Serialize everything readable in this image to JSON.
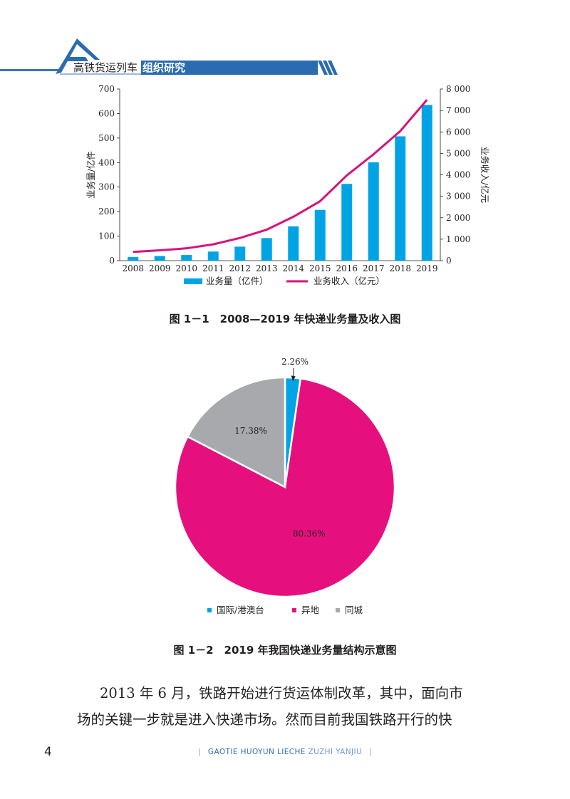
{
  "header": {
    "title_plain": "高铁货运列车",
    "title_band": "组织研究",
    "colors": {
      "band": "#2b6cb0",
      "line": "#3a73bf"
    }
  },
  "figure1": {
    "caption": "图 1－1　2008—2019 年快递业务量及收入图",
    "chart_data": {
      "type": "bar",
      "categories": [
        "2008",
        "2009",
        "2010",
        "2011",
        "2012",
        "2013",
        "2014",
        "2015",
        "2016",
        "2017",
        "2018",
        "2019"
      ],
      "series": [
        {
          "name": "业务量（亿件）",
          "type": "bar",
          "axis": "left",
          "color": "#00a4e4",
          "values": [
            15,
            19,
            23,
            37,
            57,
            92,
            140,
            207,
            313,
            401,
            507,
            635
          ]
        },
        {
          "name": "业务收入（亿元）",
          "type": "line",
          "axis": "right",
          "color": "#d6137a",
          "values": [
            408,
            480,
            575,
            760,
            1055,
            1442,
            2045,
            2770,
            3974,
            4957,
            6038,
            7497
          ]
        }
      ],
      "ylabel": "业务量/亿件",
      "y2label": "业务收入/亿元",
      "ylim": [
        0,
        700
      ],
      "y2lim": [
        0,
        8000
      ],
      "yticks": [
        "0",
        "100",
        "200",
        "300",
        "400",
        "500",
        "600",
        "700"
      ],
      "y2ticks": [
        "0",
        "1 000",
        "2 000",
        "3 000",
        "4 000",
        "5 000",
        "6 000",
        "7 000",
        "8 000"
      ],
      "legend_position": "bottom",
      "grid": false
    }
  },
  "figure2": {
    "caption": "图 1－2　2019 年我国快递业务量结构示意图",
    "chart_data": {
      "type": "pie",
      "slices": [
        {
          "name": "国际/港澳台",
          "value": 2.26,
          "label": "2.26%",
          "color": "#00a4e4"
        },
        {
          "name": "异地",
          "value": 80.36,
          "label": "80.36%",
          "color": "#e5107e"
        },
        {
          "name": "同城",
          "value": 17.38,
          "label": "17.38%",
          "color": "#a7a9ac"
        }
      ],
      "legend_position": "bottom"
    }
  },
  "body": {
    "line1": "2013 年 6 月，铁路开始进行货运体制改革，其中，面向市",
    "line2": "场的关键一步就是进入快递市场。然而目前我国铁路开行的快"
  },
  "footer": {
    "page_number": "4",
    "running_title_a": "GAOTIE HUOYUN LIECHE",
    "running_title_b": "ZUZHI YANJIU"
  }
}
